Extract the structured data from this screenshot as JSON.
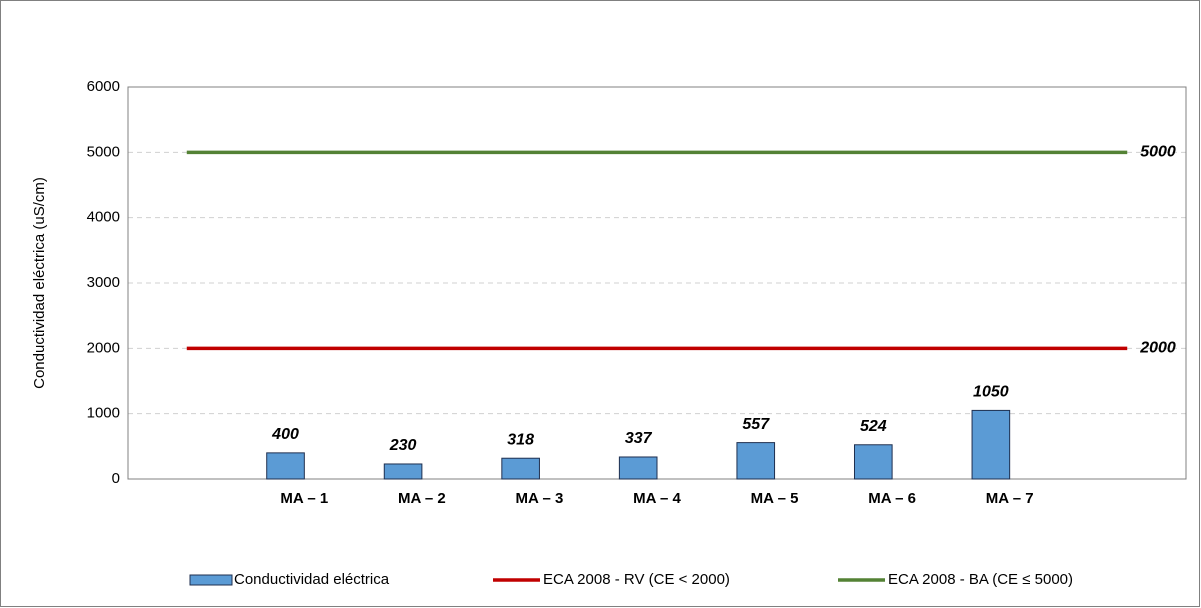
{
  "chart_data": {
    "type": "bar",
    "y_label": "Conductividad eléctrica (uS/cm)",
    "categories": [
      null,
      "MA – 1",
      "MA – 2",
      "MA – 3",
      "MA – 4",
      "MA – 5",
      "MA – 6",
      "MA – 7",
      null
    ],
    "series": [
      {
        "name": "Conductividad eléctrica",
        "type": "bar",
        "color": "#5b9bd5",
        "values": [
          null,
          400,
          230,
          318,
          337,
          557,
          524,
          1050,
          null
        ]
      },
      {
        "name": "ECA 2008 - RV (CE < 2000)",
        "type": "line",
        "color": "#c00000",
        "values": [
          2000,
          2000,
          2000,
          2000,
          2000,
          2000,
          2000,
          2000,
          2000
        ]
      },
      {
        "name": "ECA 2008 - BA (CE ≤ 5000)",
        "type": "line",
        "color": "#548235",
        "values": [
          5000,
          5000,
          5000,
          5000,
          5000,
          5000,
          5000,
          5000,
          5000
        ]
      }
    ],
    "ylim": [
      0,
      6000
    ],
    "yticks": [
      0,
      1000,
      2000,
      3000,
      4000,
      5000,
      6000
    ],
    "grid": true,
    "legend": "bottom"
  }
}
